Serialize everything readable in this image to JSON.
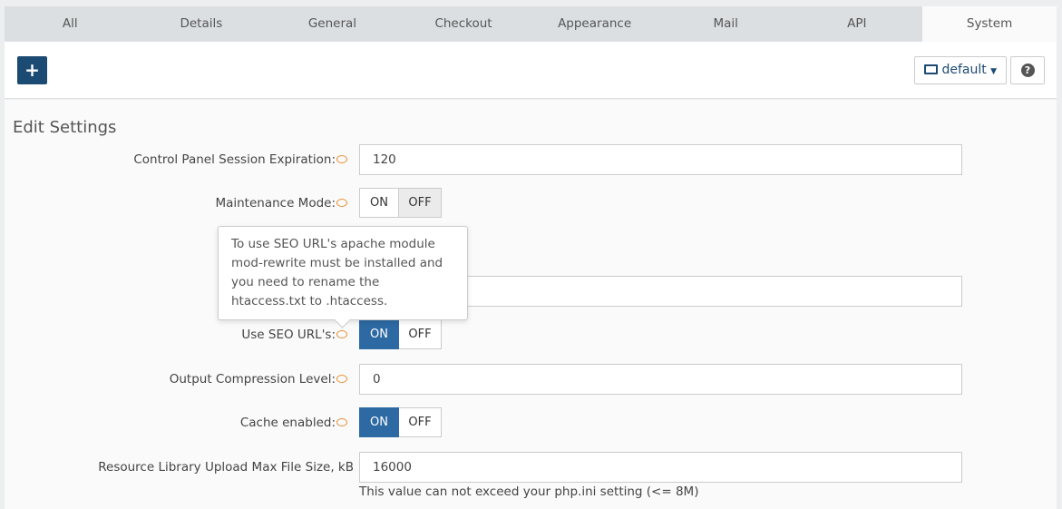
{
  "tabs": [
    "All",
    "Details",
    "General",
    "Checkout",
    "Appearance",
    "Mail",
    "API",
    "System"
  ],
  "active_tab": "System",
  "toolbar": {
    "add_label": "+",
    "layout_label": "default",
    "help_label": "?"
  },
  "title": "Edit Settings",
  "fields": {
    "session": {
      "label": "Control Panel Session Expiration:",
      "value": "120"
    },
    "maintenance": {
      "label": "Maintenance Mode:",
      "on": "ON",
      "off": "OFF",
      "state": "OFF"
    },
    "hidden": {
      "value": ""
    },
    "seo": {
      "label": "Use SEO URL's:",
      "on": "ON",
      "off": "OFF",
      "state": "ON"
    },
    "compression": {
      "label": "Output Compression Level:",
      "value": "0"
    },
    "cache": {
      "label": "Cache enabled:",
      "on": "ON",
      "off": "OFF",
      "state": "ON"
    },
    "upload": {
      "label": "Resource Library Upload Max File Size, kB",
      "value": "16000",
      "note": "This value can not exceed your php.ini setting (<= 8M)"
    }
  },
  "tooltip": "To use SEO URL's apache module mod-rewrite must be installed and you need to rename the htaccess.txt to .htaccess.",
  "colors": {
    "primary": "#1b4a72",
    "toggle_on": "#2d6aa3",
    "hint_icon": "#e8903a"
  }
}
